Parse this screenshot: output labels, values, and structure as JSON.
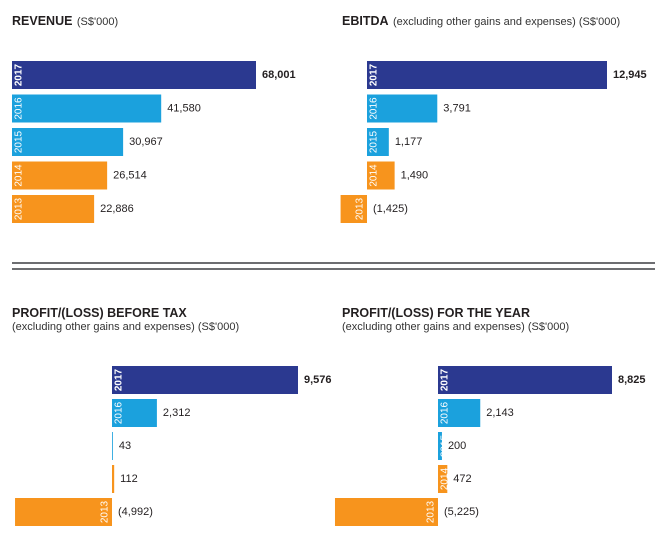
{
  "chart_data": [
    {
      "type": "bar",
      "orientation": "horizontal",
      "title": "REVENUE",
      "title_unit": "(S$'000)",
      "categories": [
        "2017",
        "2016",
        "2015",
        "2014",
        "2013"
      ],
      "values": [
        68001,
        41580,
        30967,
        26514,
        22886
      ],
      "value_labels": [
        "68,001",
        "41,580",
        "30,967",
        "26,514",
        "22,886"
      ],
      "bar_colors": [
        "#2b3990",
        "#1ba1dd",
        "#1ba1dd",
        "#f7941d",
        "#f7941d"
      ],
      "xlim": [
        0,
        68001
      ]
    },
    {
      "type": "bar",
      "orientation": "horizontal",
      "title": "EBITDA",
      "title_unit": "(excluding other gains and expenses) (S$'000)",
      "categories": [
        "2017",
        "2016",
        "2015",
        "2014",
        "2013"
      ],
      "values": [
        12945,
        3791,
        1177,
        1490,
        -1425
      ],
      "value_labels": [
        "12,945",
        "3,791",
        "1,177",
        "1,490",
        "(1,425)"
      ],
      "bar_colors": [
        "#2b3990",
        "#1ba1dd",
        "#1ba1dd",
        "#f7941d",
        "#f7941d"
      ],
      "xlim": [
        -1425,
        12945
      ]
    },
    {
      "type": "bar",
      "orientation": "horizontal",
      "title": "PROFIT/(LOSS) BEFORE TAX",
      "subtitle": "(excluding other gains and expenses) (S$'000)",
      "categories": [
        "2017",
        "2016",
        "2015",
        "2014",
        "2013"
      ],
      "values": [
        9576,
        2312,
        43,
        112,
        -4992
      ],
      "value_labels": [
        "9,576",
        "2,312",
        "43",
        "112",
        "(4,992)"
      ],
      "bar_colors": [
        "#2b3990",
        "#1ba1dd",
        "#1ba1dd",
        "#f7941d",
        "#f7941d"
      ],
      "xlim": [
        -4992,
        9576
      ]
    },
    {
      "type": "bar",
      "orientation": "horizontal",
      "title": "PROFIT/(LOSS) FOR THE YEAR",
      "subtitle": "(excluding other gains and expenses) (S$'000)",
      "categories": [
        "2017",
        "2016",
        "2015",
        "2014",
        "2013"
      ],
      "values": [
        8825,
        2143,
        200,
        472,
        -5225
      ],
      "value_labels": [
        "8,825",
        "2,143",
        "200",
        "472",
        "(5,225)"
      ],
      "bar_colors": [
        "#2b3990",
        "#1ba1dd",
        "#1ba1dd",
        "#f7941d",
        "#f7941d"
      ],
      "xlim": [
        -5225,
        8825
      ]
    }
  ]
}
